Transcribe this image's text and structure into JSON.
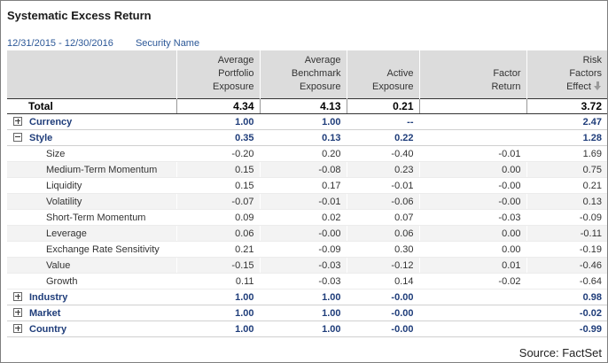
{
  "title": "Systematic Excess Return",
  "date_range": "12/31/2015 - 12/30/2016",
  "security_label": "Security Name",
  "headers": {
    "col1": [
      "Average",
      "Portfolio",
      "Exposure"
    ],
    "col2": [
      "Average",
      "Benchmark",
      "Exposure"
    ],
    "col3": [
      "Active",
      "Exposure"
    ],
    "col4": [
      "Factor",
      "Return"
    ],
    "col5": [
      "Risk",
      "Factors",
      "Effect"
    ]
  },
  "total": {
    "label": "Total",
    "c1": "4.34",
    "c2": "4.13",
    "c3": "0.21",
    "c4": "",
    "c5": "3.72"
  },
  "groups": [
    {
      "label": "Currency",
      "expanded": false,
      "c1": "1.00",
      "c2": "1.00",
      "c3": "--",
      "c4": "",
      "c5": "2.47",
      "children": []
    },
    {
      "label": "Style",
      "expanded": true,
      "c1": "0.35",
      "c2": "0.13",
      "c3": "0.22",
      "c4": "",
      "c5": "1.28",
      "children": [
        {
          "label": "Size",
          "c1": "-0.20",
          "c2": "0.20",
          "c3": "-0.40",
          "c4": "-0.01",
          "c5": "1.69"
        },
        {
          "label": "Medium-Term Momentum",
          "c1": "0.15",
          "c2": "-0.08",
          "c3": "0.23",
          "c4": "0.00",
          "c5": "0.75"
        },
        {
          "label": "Liquidity",
          "c1": "0.15",
          "c2": "0.17",
          "c3": "-0.01",
          "c4": "-0.00",
          "c5": "0.21"
        },
        {
          "label": "Volatility",
          "c1": "-0.07",
          "c2": "-0.01",
          "c3": "-0.06",
          "c4": "-0.00",
          "c5": "0.13"
        },
        {
          "label": "Short-Term Momentum",
          "c1": "0.09",
          "c2": "0.02",
          "c3": "0.07",
          "c4": "-0.03",
          "c5": "-0.09"
        },
        {
          "label": "Leverage",
          "c1": "0.06",
          "c2": "-0.00",
          "c3": "0.06",
          "c4": "0.00",
          "c5": "-0.11"
        },
        {
          "label": "Exchange Rate Sensitivity",
          "c1": "0.21",
          "c2": "-0.09",
          "c3": "0.30",
          "c4": "0.00",
          "c5": "-0.19"
        },
        {
          "label": "Value",
          "c1": "-0.15",
          "c2": "-0.03",
          "c3": "-0.12",
          "c4": "0.01",
          "c5": "-0.46"
        },
        {
          "label": "Growth",
          "c1": "0.11",
          "c2": "-0.03",
          "c3": "0.14",
          "c4": "-0.02",
          "c5": "-0.64"
        }
      ]
    },
    {
      "label": "Industry",
      "expanded": false,
      "c1": "1.00",
      "c2": "1.00",
      "c3": "-0.00",
      "c4": "",
      "c5": "0.98",
      "children": []
    },
    {
      "label": "Market",
      "expanded": false,
      "c1": "1.00",
      "c2": "1.00",
      "c3": "-0.00",
      "c4": "",
      "c5": "-0.02",
      "children": []
    },
    {
      "label": "Country",
      "expanded": false,
      "c1": "1.00",
      "c2": "1.00",
      "c3": "-0.00",
      "c4": "",
      "c5": "-0.99",
      "children": []
    }
  ],
  "source": "Source: FactSet"
}
